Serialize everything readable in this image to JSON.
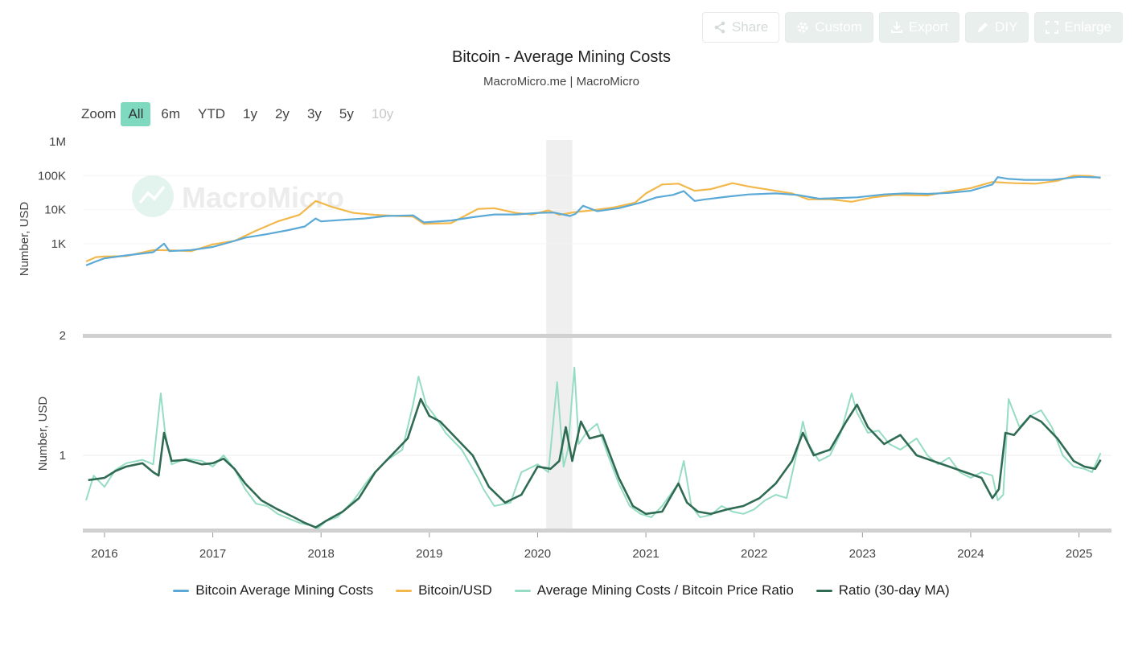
{
  "toolbar": {
    "share": "Share",
    "custom": "Custom",
    "export": "Export",
    "diy": "DIY",
    "enlarge": "Enlarge"
  },
  "zoom": {
    "label": "Zoom",
    "buttons": [
      "All",
      "6m",
      "YTD",
      "1y",
      "2y",
      "3y",
      "5y",
      "10y"
    ],
    "active": "All",
    "disabled": [
      "10y"
    ]
  },
  "watermark": "MacroMicro",
  "chart_data": [
    {
      "type": "line",
      "scale": "log",
      "title": "Bitcoin - Average Mining Costs",
      "subtitle": "MacroMicro.me | MacroMicro",
      "ylabel": "Number, USD",
      "yticks": [
        "1M",
        "100K",
        "10K",
        "1K",
        "2"
      ],
      "ylim": [
        2,
        1000000
      ],
      "xlim": [
        2015.8,
        2025.3
      ],
      "shaded_region": [
        2020.08,
        2020.32
      ],
      "series": [
        {
          "name": "Bitcoin Average Mining Costs",
          "color": "#5aa9d6",
          "x": [
            2015.83,
            2015.92,
            2016.0,
            2016.2,
            2016.45,
            2016.55,
            2016.6,
            2016.8,
            2017.0,
            2017.2,
            2017.3,
            2017.5,
            2017.7,
            2017.85,
            2017.95,
            2018.0,
            2018.2,
            2018.4,
            2018.6,
            2018.85,
            2018.95,
            2019.2,
            2019.4,
            2019.6,
            2019.8,
            2020.0,
            2020.15,
            2020.3,
            2020.35,
            2020.42,
            2020.55,
            2020.75,
            2020.95,
            2021.1,
            2021.25,
            2021.35,
            2021.45,
            2021.55,
            2021.75,
            2021.95,
            2022.2,
            2022.4,
            2022.6,
            2022.8,
            2022.95,
            2023.2,
            2023.4,
            2023.6,
            2023.8,
            2024.0,
            2024.2,
            2024.25,
            2024.35,
            2024.5,
            2024.75,
            2024.9,
            2025.0,
            2025.2
          ],
          "y": [
            230,
            300,
            370,
            450,
            560,
            1000,
            600,
            650,
            800,
            1200,
            1500,
            1900,
            2500,
            3200,
            5500,
            4500,
            5000,
            5500,
            6500,
            6800,
            4200,
            4800,
            6000,
            7200,
            7200,
            8000,
            8200,
            6500,
            7500,
            13000,
            9000,
            11000,
            16000,
            23000,
            27000,
            35000,
            18000,
            20000,
            24000,
            28000,
            30000,
            27000,
            21000,
            22000,
            23000,
            28000,
            30000,
            29000,
            31000,
            36000,
            55000,
            90000,
            80000,
            75000,
            75000,
            85000,
            92000,
            88000
          ]
        },
        {
          "name": "Bitcoin/USD",
          "color": "#f2b84b",
          "x": [
            2015.83,
            2015.92,
            2016.0,
            2016.2,
            2016.45,
            2016.6,
            2016.8,
            2017.0,
            2017.2,
            2017.4,
            2017.6,
            2017.8,
            2017.95,
            2018.1,
            2018.3,
            2018.5,
            2018.7,
            2018.85,
            2018.95,
            2019.2,
            2019.45,
            2019.6,
            2019.8,
            2019.95,
            2020.1,
            2020.2,
            2020.35,
            2020.5,
            2020.7,
            2020.9,
            2021.0,
            2021.15,
            2021.3,
            2021.45,
            2021.6,
            2021.8,
            2021.95,
            2022.1,
            2022.35,
            2022.5,
            2022.7,
            2022.9,
            2023.1,
            2023.3,
            2023.6,
            2023.8,
            2024.0,
            2024.2,
            2024.4,
            2024.6,
            2024.8,
            2024.95,
            2025.1,
            2025.2
          ],
          "y": [
            300,
            400,
            420,
            430,
            650,
            640,
            600,
            950,
            1200,
            2400,
            4500,
            7000,
            18000,
            12000,
            8000,
            7000,
            6500,
            6300,
            3800,
            4000,
            10500,
            11000,
            8000,
            7200,
            9500,
            7000,
            8500,
            9500,
            11500,
            16000,
            30000,
            55000,
            58000,
            36000,
            40000,
            60000,
            48000,
            40000,
            30000,
            20000,
            20000,
            17000,
            23000,
            27000,
            26000,
            34000,
            43000,
            65000,
            60000,
            58000,
            70000,
            100000,
            98000,
            85000
          ]
        }
      ]
    },
    {
      "type": "line",
      "title": "",
      "ylabel": "Number, USD",
      "yticks": [
        "1"
      ],
      "ylim": [
        0.35,
        1.9
      ],
      "xlim": [
        2015.8,
        2025.3
      ],
      "xticks": [
        "2016",
        "2017",
        "2018",
        "2019",
        "2020",
        "2021",
        "2022",
        "2023",
        "2024",
        "2025"
      ],
      "series": [
        {
          "name": "Average Mining Costs / Bitcoin Price Ratio",
          "color": "#96dcc4",
          "x": [
            2015.83,
            2015.9,
            2016.0,
            2016.1,
            2016.2,
            2016.35,
            2016.45,
            2016.52,
            2016.56,
            2016.62,
            2016.75,
            2016.9,
            2017.0,
            2017.1,
            2017.2,
            2017.3,
            2017.4,
            2017.5,
            2017.6,
            2017.7,
            2017.8,
            2017.9,
            2017.97,
            2018.05,
            2018.15,
            2018.3,
            2018.45,
            2018.6,
            2018.75,
            2018.85,
            2018.9,
            2018.97,
            2019.05,
            2019.15,
            2019.3,
            2019.45,
            2019.5,
            2019.6,
            2019.75,
            2019.85,
            2020.0,
            2020.1,
            2020.18,
            2020.24,
            2020.28,
            2020.34,
            2020.38,
            2020.45,
            2020.55,
            2020.65,
            2020.75,
            2020.85,
            2020.95,
            2021.05,
            2021.15,
            2021.3,
            2021.35,
            2021.42,
            2021.5,
            2021.6,
            2021.7,
            2021.8,
            2021.9,
            2022.0,
            2022.1,
            2022.2,
            2022.3,
            2022.4,
            2022.45,
            2022.5,
            2022.6,
            2022.7,
            2022.8,
            2022.9,
            2022.95,
            2023.05,
            2023.15,
            2023.25,
            2023.35,
            2023.5,
            2023.6,
            2023.7,
            2023.8,
            2023.9,
            2024.0,
            2024.1,
            2024.2,
            2024.25,
            2024.3,
            2024.35,
            2024.45,
            2024.55,
            2024.65,
            2024.75,
            2024.85,
            2024.95,
            2025.05,
            2025.12,
            2025.2
          ],
          "y": [
            0.6,
            0.82,
            0.72,
            0.87,
            0.93,
            0.96,
            0.92,
            1.55,
            1.2,
            0.92,
            0.97,
            0.95,
            0.9,
            1.0,
            0.88,
            0.7,
            0.57,
            0.55,
            0.48,
            0.44,
            0.4,
            0.38,
            0.35,
            0.42,
            0.45,
            0.6,
            0.8,
            0.95,
            1.05,
            1.45,
            1.7,
            1.45,
            1.35,
            1.2,
            1.05,
            0.8,
            0.7,
            0.55,
            0.58,
            0.85,
            0.92,
            0.85,
            1.65,
            0.9,
            1.05,
            1.78,
            1.1,
            1.2,
            1.28,
            1.0,
            0.75,
            0.55,
            0.48,
            0.45,
            0.55,
            0.75,
            0.95,
            0.55,
            0.45,
            0.47,
            0.55,
            0.5,
            0.48,
            0.52,
            0.6,
            0.65,
            0.62,
            1.05,
            1.3,
            1.1,
            0.95,
            1.0,
            1.2,
            1.55,
            1.38,
            1.2,
            1.22,
            1.1,
            1.05,
            1.15,
            1.0,
            0.92,
            0.98,
            0.85,
            0.8,
            0.85,
            0.82,
            0.6,
            0.65,
            1.5,
            1.25,
            1.35,
            1.4,
            1.25,
            1.0,
            0.9,
            0.88,
            0.85,
            1.02
          ],
          "width": 2
        },
        {
          "name": "Ratio (30-day MA)",
          "color": "#2f6b52",
          "x": [
            2015.85,
            2016.0,
            2016.1,
            2016.2,
            2016.35,
            2016.45,
            2016.5,
            2016.55,
            2016.62,
            2016.75,
            2016.9,
            2017.0,
            2017.1,
            2017.2,
            2017.3,
            2017.45,
            2017.6,
            2017.75,
            2017.85,
            2017.95,
            2018.05,
            2018.2,
            2018.35,
            2018.5,
            2018.65,
            2018.8,
            2018.92,
            2019.0,
            2019.1,
            2019.25,
            2019.4,
            2019.55,
            2019.7,
            2019.85,
            2020.0,
            2020.12,
            2020.2,
            2020.26,
            2020.32,
            2020.4,
            2020.48,
            2020.6,
            2020.75,
            2020.88,
            2021.0,
            2021.15,
            2021.3,
            2021.38,
            2021.48,
            2021.6,
            2021.75,
            2021.9,
            2022.05,
            2022.2,
            2022.35,
            2022.45,
            2022.55,
            2022.7,
            2022.85,
            2022.95,
            2023.05,
            2023.2,
            2023.35,
            2023.5,
            2023.65,
            2023.8,
            2023.95,
            2024.1,
            2024.2,
            2024.26,
            2024.32,
            2024.4,
            2024.55,
            2024.65,
            2024.8,
            2024.95,
            2025.05,
            2025.15,
            2025.2
          ],
          "y": [
            0.78,
            0.8,
            0.86,
            0.9,
            0.93,
            0.85,
            0.82,
            1.2,
            0.95,
            0.96,
            0.92,
            0.93,
            0.97,
            0.88,
            0.75,
            0.6,
            0.52,
            0.45,
            0.4,
            0.36,
            0.42,
            0.5,
            0.62,
            0.85,
            1.0,
            1.15,
            1.5,
            1.35,
            1.3,
            1.15,
            1.0,
            0.72,
            0.58,
            0.65,
            0.9,
            0.88,
            0.95,
            1.25,
            0.95,
            1.3,
            1.15,
            1.18,
            0.8,
            0.55,
            0.48,
            0.5,
            0.75,
            0.58,
            0.5,
            0.48,
            0.52,
            0.55,
            0.62,
            0.75,
            0.95,
            1.2,
            1.0,
            1.05,
            1.3,
            1.45,
            1.25,
            1.1,
            1.18,
            1.0,
            0.95,
            0.9,
            0.85,
            0.8,
            0.62,
            0.7,
            1.2,
            1.18,
            1.35,
            1.3,
            1.15,
            0.95,
            0.9,
            0.88,
            0.96
          ],
          "width": 2.6
        }
      ]
    }
  ],
  "legend": [
    {
      "label": "Bitcoin Average Mining Costs",
      "color": "#5aa9d6"
    },
    {
      "label": "Bitcoin/USD",
      "color": "#f2b84b"
    },
    {
      "label": "Average Mining Costs / Bitcoin Price Ratio",
      "color": "#96dcc4"
    },
    {
      "label": "Ratio (30-day MA)",
      "color": "#2f6b52"
    }
  ]
}
